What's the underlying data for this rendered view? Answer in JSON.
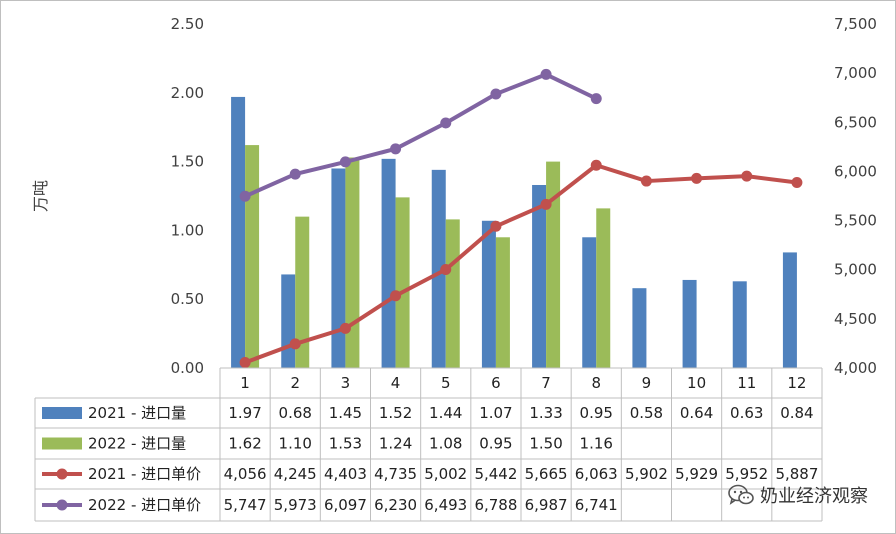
{
  "chart_data": {
    "type": "bar",
    "title": "",
    "ylabel": "万吨",
    "ylim": [
      0,
      2.5
    ],
    "y2lim": [
      4000,
      7500
    ],
    "categories": [
      "1",
      "2",
      "3",
      "4",
      "5",
      "6",
      "7",
      "8",
      "9",
      "10",
      "11",
      "12"
    ],
    "yticks": [
      "0.00",
      "0.50",
      "1.00",
      "1.50",
      "2.00",
      "2.50"
    ],
    "y2ticks": [
      "4,000",
      "4,500",
      "5,000",
      "5,500",
      "6,000",
      "6,500",
      "7,000",
      "7,500"
    ],
    "series": [
      {
        "name": "2021 - 进口量",
        "kind": "bar",
        "axis": "left",
        "color": "#4f81bd",
        "values": [
          1.97,
          0.68,
          1.45,
          1.52,
          1.44,
          1.07,
          1.33,
          0.95,
          0.58,
          0.64,
          0.63,
          0.84
        ],
        "labels": [
          "1.97",
          "0.68",
          "1.45",
          "1.52",
          "1.44",
          "1.07",
          "1.33",
          "0.95",
          "0.58",
          "0.64",
          "0.63",
          "0.84"
        ]
      },
      {
        "name": "2022 - 进口量",
        "kind": "bar",
        "axis": "left",
        "color": "#9bbb59",
        "values": [
          1.62,
          1.1,
          1.53,
          1.24,
          1.08,
          0.95,
          1.5,
          1.16,
          null,
          null,
          null,
          null
        ],
        "labels": [
          "1.62",
          "1.10",
          "1.53",
          "1.24",
          "1.08",
          "0.95",
          "1.50",
          "1.16",
          "",
          "",
          "",
          ""
        ]
      },
      {
        "name": "2021 - 进口单价",
        "kind": "line",
        "axis": "right",
        "color": "#c0504d",
        "values": [
          4056,
          4245,
          4403,
          4735,
          5002,
          5442,
          5665,
          6063,
          5902,
          5929,
          5952,
          5887
        ],
        "labels": [
          "4,056",
          "4,245",
          "4,403",
          "4,735",
          "5,002",
          "5,442",
          "5,665",
          "6,063",
          "5,902",
          "5,929",
          "5,952",
          "5,887"
        ]
      },
      {
        "name": "2022 - 进口单价",
        "kind": "line",
        "axis": "right",
        "color": "#8064a2",
        "values": [
          5747,
          5973,
          6097,
          6230,
          6493,
          6788,
          6987,
          6741,
          null,
          null,
          null,
          null
        ],
        "labels": [
          "5,747",
          "5,973",
          "6,097",
          "6,230",
          "6,493",
          "6,788",
          "6,987",
          "6,741",
          "",
          "",
          "",
          ""
        ]
      }
    ]
  },
  "watermark": {
    "text": "奶业经济观察",
    "icon": "wechat-icon"
  }
}
